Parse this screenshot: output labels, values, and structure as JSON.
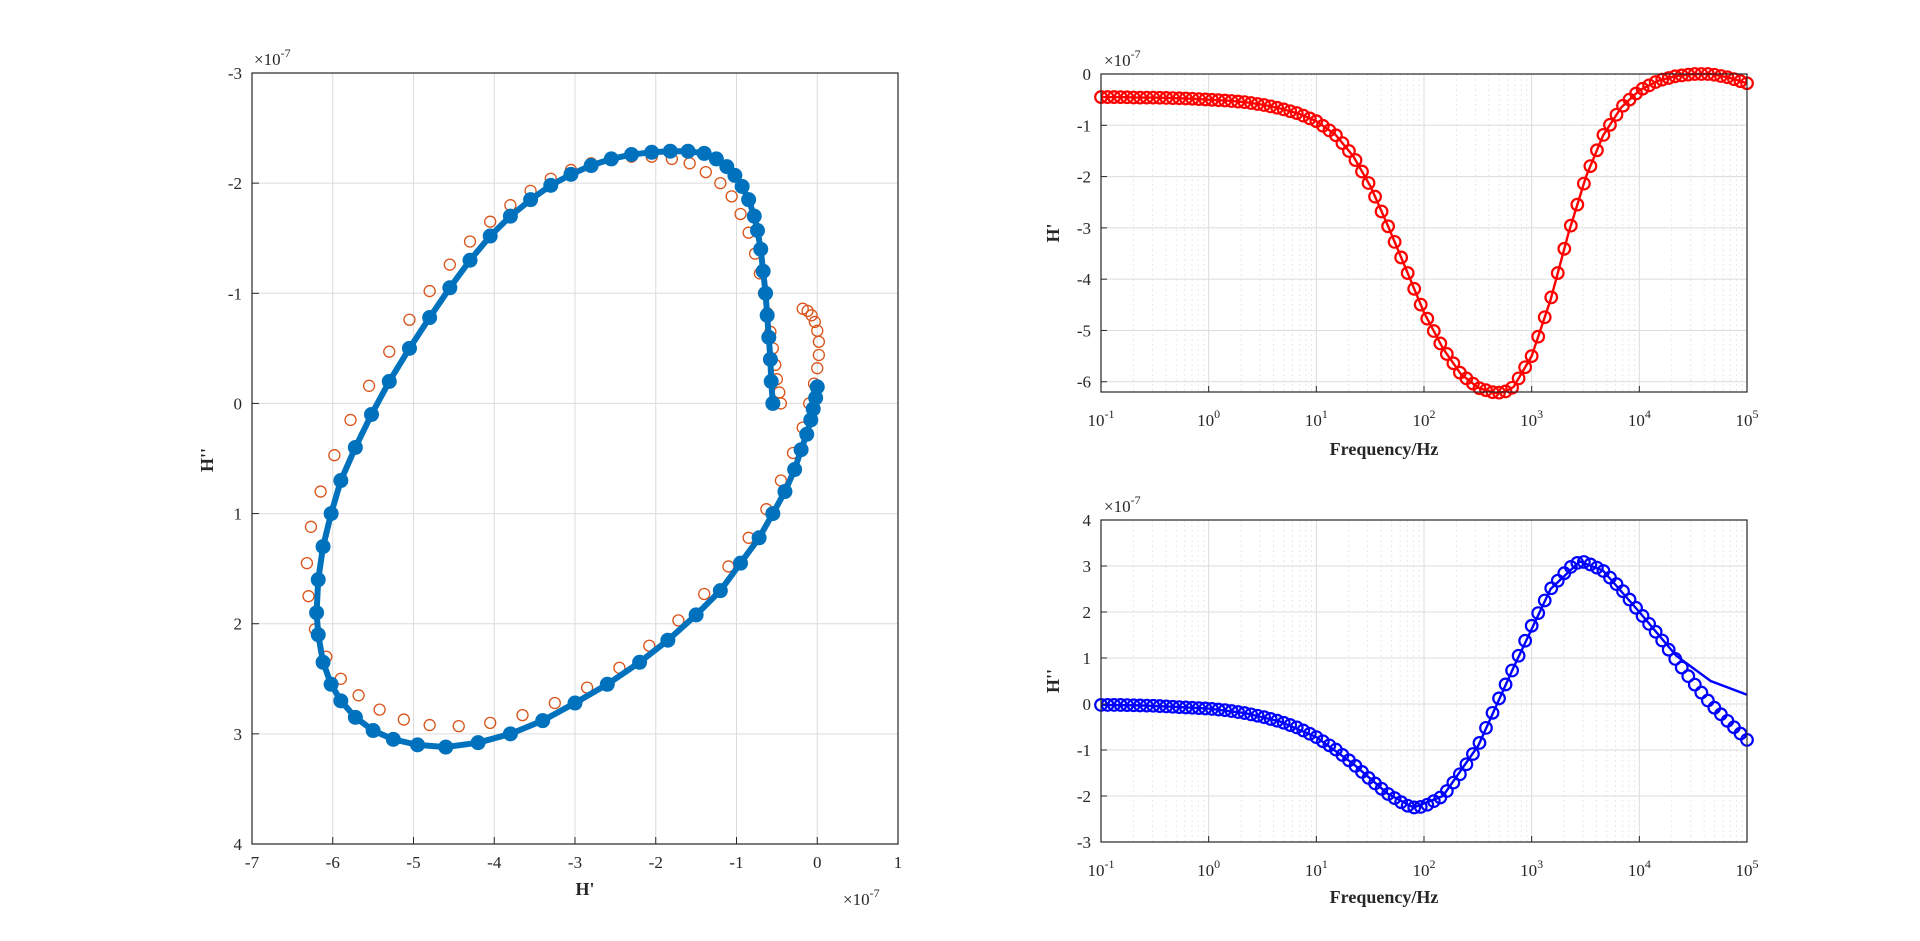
{
  "chart_data": [
    {
      "type": "scatter",
      "panel": "nyquist",
      "xlabel": "H'",
      "ylabel": "H''",
      "x_multiplier": "×10",
      "x_multiplier_exp": "-7",
      "y_multiplier": "×10",
      "y_multiplier_exp": "-7",
      "xlim": [
        -7,
        1
      ],
      "ylim": [
        4,
        -3
      ],
      "y_reversed": true,
      "grid": true,
      "xticks": [
        "-7",
        "-6",
        "-5",
        "-4",
        "-3",
        "-2",
        "-1",
        "0",
        "1"
      ],
      "yticks": [
        "-3",
        "-2",
        "-1",
        "0",
        "1",
        "2",
        "3",
        "4"
      ],
      "series": [
        {
          "color": "#0072BD",
          "style": "line+filled-markers",
          "x": [
            -0.55,
            -0.57,
            -0.58,
            -0.6,
            -0.62,
            -0.64,
            -0.67,
            -0.7,
            -0.74,
            -0.78,
            -0.85,
            -0.93,
            -1.02,
            -1.12,
            -1.25,
            -1.4,
            -1.6,
            -1.82,
            -2.05,
            -2.3,
            -2.55,
            -2.8,
            -3.05,
            -3.3,
            -3.55,
            -3.8,
            -4.05,
            -4.3,
            -4.55,
            -4.8,
            -5.05,
            -5.3,
            -5.52,
            -5.72,
            -5.9,
            -6.02,
            -6.12,
            -6.18,
            -6.2,
            -6.18,
            -6.12,
            -6.02,
            -5.9,
            -5.72,
            -5.5,
            -5.25,
            -4.95,
            -4.6,
            -4.2,
            -3.8,
            -3.4,
            -3.0,
            -2.6,
            -2.2,
            -1.85,
            -1.5,
            -1.2,
            -0.95,
            -0.72,
            -0.55,
            -0.4,
            -0.28,
            -0.2,
            -0.13,
            -0.08,
            -0.05,
            -0.02,
            0.0
          ],
          "y": [
            0.0,
            -0.2,
            -0.4,
            -0.6,
            -0.8,
            -1.0,
            -1.2,
            -1.4,
            -1.57,
            -1.7,
            -1.85,
            -1.97,
            -2.07,
            -2.15,
            -2.22,
            -2.27,
            -2.29,
            -2.29,
            -2.28,
            -2.26,
            -2.22,
            -2.16,
            -2.08,
            -1.98,
            -1.85,
            -1.7,
            -1.52,
            -1.3,
            -1.05,
            -0.78,
            -0.5,
            -0.2,
            0.1,
            0.4,
            0.7,
            1.0,
            1.3,
            1.6,
            1.9,
            2.1,
            2.35,
            2.55,
            2.7,
            2.85,
            2.97,
            3.05,
            3.1,
            3.12,
            3.08,
            3.0,
            2.88,
            2.72,
            2.55,
            2.35,
            2.15,
            1.92,
            1.7,
            1.45,
            1.22,
            1.0,
            0.8,
            0.6,
            0.42,
            0.28,
            0.15,
            0.05,
            -0.05,
            -0.15
          ]
        },
        {
          "color": "#D95319",
          "style": "open-markers",
          "x": [
            -0.45,
            -0.47,
            -0.5,
            -0.52,
            -0.55,
            -0.58,
            -0.62,
            -0.66,
            -0.71,
            -0.77,
            -0.85,
            -0.95,
            -1.06,
            -1.2,
            -1.38,
            -1.58,
            -1.8,
            -2.05,
            -2.3,
            -2.55,
            -2.8,
            -3.05,
            -3.3,
            -3.55,
            -3.8,
            -4.05,
            -4.3,
            -4.55,
            -4.8,
            -5.05,
            -5.3,
            -5.55,
            -5.78,
            -5.98,
            -6.15,
            -6.27,
            -6.32,
            -6.3,
            -6.22,
            -6.08,
            -5.9,
            -5.68,
            -5.42,
            -5.12,
            -4.8,
            -4.44,
            -4.05,
            -3.65,
            -3.25,
            -2.85,
            -2.45,
            -2.08,
            -1.72,
            -1.4,
            -1.1,
            -0.85,
            -0.63,
            -0.45,
            -0.3,
            -0.18,
            -0.1,
            -0.04,
            0.0,
            0.02,
            0.02,
            0.0,
            -0.03,
            -0.07,
            -0.12,
            -0.18
          ],
          "y": [
            0.0,
            -0.1,
            -0.22,
            -0.35,
            -0.5,
            -0.65,
            -0.82,
            -1.0,
            -1.18,
            -1.36,
            -1.55,
            -1.72,
            -1.88,
            -2.0,
            -2.1,
            -2.18,
            -2.22,
            -2.24,
            -2.24,
            -2.22,
            -2.18,
            -2.12,
            -2.04,
            -1.93,
            -1.8,
            -1.65,
            -1.47,
            -1.26,
            -1.02,
            -0.76,
            -0.47,
            -0.16,
            0.15,
            0.47,
            0.8,
            1.12,
            1.45,
            1.75,
            2.05,
            2.3,
            2.5,
            2.65,
            2.78,
            2.87,
            2.92,
            2.93,
            2.9,
            2.83,
            2.72,
            2.58,
            2.4,
            2.2,
            1.97,
            1.73,
            1.48,
            1.22,
            0.96,
            0.7,
            0.45,
            0.22,
            0.0,
            -0.18,
            -0.32,
            -0.44,
            -0.56,
            -0.66,
            -0.74,
            -0.8,
            -0.84,
            -0.86
          ]
        }
      ]
    },
    {
      "type": "line",
      "panel": "real-part",
      "xlabel": "Frequency/Hz",
      "ylabel": "H'",
      "x_scale": "log",
      "y_multiplier": "×10",
      "y_multiplier_exp": "-7",
      "xlim": [
        0.1,
        100000
      ],
      "ylim": [
        -6.2,
        0
      ],
      "grid": true,
      "yticks": [
        "0",
        "-1",
        "-2",
        "-3",
        "-4",
        "-5",
        "-6"
      ],
      "xticks": [
        {
          "base": "10",
          "exp": "-1"
        },
        {
          "base": "10",
          "exp": "0"
        },
        {
          "base": "10",
          "exp": "1"
        },
        {
          "base": "10",
          "exp": "2"
        },
        {
          "base": "10",
          "exp": "3"
        },
        {
          "base": "10",
          "exp": "4"
        },
        {
          "base": "10",
          "exp": "5"
        }
      ],
      "series": [
        {
          "color": "#FF0000",
          "style": "line+open-markers",
          "x": [
            0.1,
            0.15,
            0.22,
            0.32,
            0.46,
            0.68,
            1,
            1.5,
            2.2,
            3.2,
            4.6,
            6.8,
            10,
            15,
            22,
            32,
            46,
            68,
            100,
            150,
            220,
            320,
            460,
            560,
            680,
            1000,
            1500,
            2200,
            3200,
            4600,
            6800,
            10000,
            15000,
            22000,
            32000,
            46000,
            68000,
            100000
          ],
          "y": [
            -0.45,
            -0.45,
            -0.46,
            -0.46,
            -0.47,
            -0.48,
            -0.5,
            -0.52,
            -0.55,
            -0.6,
            -0.67,
            -0.77,
            -0.92,
            -1.18,
            -1.6,
            -2.2,
            -2.95,
            -3.8,
            -4.65,
            -5.35,
            -5.85,
            -6.12,
            -6.22,
            -6.2,
            -6.1,
            -5.5,
            -4.4,
            -3.1,
            -2.0,
            -1.2,
            -0.65,
            -0.32,
            -0.13,
            -0.04,
            0.0,
            0.0,
            -0.07,
            -0.18
          ]
        }
      ]
    },
    {
      "type": "line",
      "panel": "imaginary-part",
      "xlabel": "Frequency/Hz",
      "ylabel": "H''",
      "x_scale": "log",
      "y_multiplier": "×10",
      "y_multiplier_exp": "-7",
      "xlim": [
        0.1,
        100000
      ],
      "ylim": [
        -3,
        4
      ],
      "grid": true,
      "yticks": [
        "4",
        "3",
        "2",
        "1",
        "0",
        "-1",
        "-2",
        "-3"
      ],
      "xticks": [
        {
          "base": "10",
          "exp": "-1"
        },
        {
          "base": "10",
          "exp": "0"
        },
        {
          "base": "10",
          "exp": "1"
        },
        {
          "base": "10",
          "exp": "2"
        },
        {
          "base": "10",
          "exp": "3"
        },
        {
          "base": "10",
          "exp": "4"
        },
        {
          "base": "10",
          "exp": "5"
        }
      ],
      "series": [
        {
          "color": "#0000FF",
          "style": "line",
          "x": [
            0.1,
            0.22,
            0.46,
            1,
            2.2,
            4.6,
            10,
            22,
            46,
            80,
            150,
            320,
            680,
            1500,
            2800,
            4600,
            10000,
            22000,
            46000,
            100000
          ],
          "y": [
            -0.02,
            -0.03,
            -0.06,
            -0.1,
            -0.2,
            -0.38,
            -0.72,
            -1.3,
            -1.95,
            -2.25,
            -2.0,
            -0.9,
            0.8,
            2.5,
            3.1,
            2.9,
            2.0,
            1.05,
            0.5,
            0.2
          ]
        },
        {
          "color": "#0000FF",
          "style": "open-markers",
          "x": [
            0.1,
            0.15,
            0.22,
            0.32,
            0.46,
            0.68,
            1,
            1.5,
            2.2,
            3.2,
            4.6,
            6.8,
            10,
            15,
            22,
            32,
            46,
            68,
            80,
            100,
            150,
            220,
            320,
            460,
            680,
            1000,
            1500,
            2200,
            2800,
            3200,
            4600,
            6800,
            10000,
            15000,
            22000,
            32000,
            46000,
            68000,
            100000
          ],
          "y": [
            -0.02,
            -0.02,
            -0.03,
            -0.04,
            -0.06,
            -0.08,
            -0.1,
            -0.14,
            -0.2,
            -0.28,
            -0.38,
            -0.52,
            -0.72,
            -0.98,
            -1.3,
            -1.65,
            -1.95,
            -2.2,
            -2.25,
            -2.23,
            -2.0,
            -1.5,
            -0.9,
            -0.05,
            0.8,
            1.7,
            2.5,
            2.95,
            3.1,
            3.08,
            2.9,
            2.5,
            2.0,
            1.5,
            0.95,
            0.45,
            0.0,
            -0.4,
            -0.78
          ]
        }
      ]
    }
  ]
}
